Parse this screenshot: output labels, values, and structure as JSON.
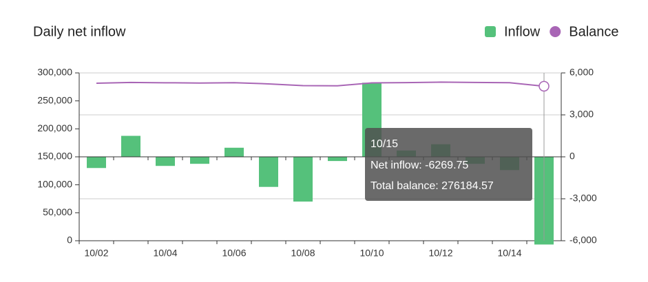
{
  "chart_data": {
    "type": "bar",
    "title": "Daily net inflow",
    "categories": [
      "10/02",
      null,
      "10/04",
      null,
      "10/06",
      null,
      "10/08",
      null,
      "10/10",
      null,
      "10/12",
      null,
      "10/14",
      null
    ],
    "series": [
      {
        "name": "Inflow",
        "type": "bar",
        "axis": "y2",
        "color": "#55c17b",
        "values": [
          -800,
          1500,
          -650,
          -500,
          650,
          -2150,
          -3200,
          -300,
          5300,
          450,
          900,
          -500,
          -950,
          -6269.75
        ]
      },
      {
        "name": "Balance",
        "type": "line",
        "axis": "y",
        "color": "#a865b5",
        "values": [
          281500,
          283000,
          282400,
          281900,
          282500,
          280400,
          277200,
          276900,
          282200,
          282600,
          283500,
          283000,
          282450,
          276184.57
        ]
      }
    ],
    "ylim": [
      0,
      300000
    ],
    "yticks": [
      0,
      {
        "value": 50000,
        "label": "50,000"
      },
      {
        "value": 100000,
        "label": "100,000"
      },
      {
        "value": 150000,
        "label": "150,000"
      },
      {
        "value": 200000,
        "label": "200,000"
      },
      {
        "value": 250000,
        "label": "250,000"
      },
      {
        "value": 300000,
        "label": "300,000"
      }
    ],
    "y2lim": [
      -6000,
      6000
    ],
    "y2ticks": [
      {
        "value": -6000,
        "label": "-6,000"
      },
      {
        "value": -3000,
        "label": "-3,000"
      },
      0,
      {
        "value": 3000,
        "label": "3,000"
      },
      {
        "value": 6000,
        "label": "6,000"
      }
    ],
    "grid": true,
    "legend": "top-right",
    "tooltip": {
      "title": "10/15",
      "lines": [
        "Net inflow: -6269.75",
        "Total balance: 276184.57"
      ]
    }
  }
}
